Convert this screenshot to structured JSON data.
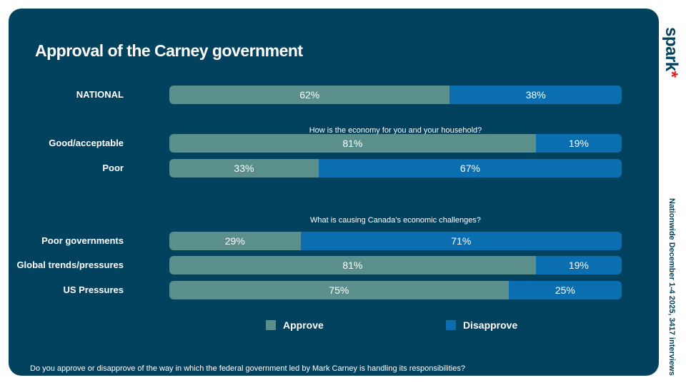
{
  "chart_data": {
    "type": "bar",
    "title": "Approval of the Carney government",
    "stacked": true,
    "orientation": "horizontal",
    "categories": [
      "NATIONAL",
      "Good/acceptable",
      "Poor",
      "Poor governments",
      "Global trends/pressures",
      "US Pressures"
    ],
    "series": [
      {
        "name": "Approve",
        "color": "#5b8f8b",
        "values": [
          62,
          81,
          33,
          29,
          81,
          75
        ]
      },
      {
        "name": "Disapprove",
        "color": "#0a6eb0",
        "values": [
          38,
          19,
          67,
          71,
          19,
          25
        ]
      }
    ],
    "group_headers": [
      "How is the economy for you and your household?",
      "What is causing Canada’s economic challenges?"
    ],
    "legend_position": "bottom",
    "footnote": "Do you approve or disapprove of the way in which the federal government led by Mark Carney is handling its responsibilities?",
    "source": "Nationwide December 1-4 2025, 3417 interviews"
  },
  "brand": {
    "logo": "spark",
    "asterisk": "*"
  }
}
